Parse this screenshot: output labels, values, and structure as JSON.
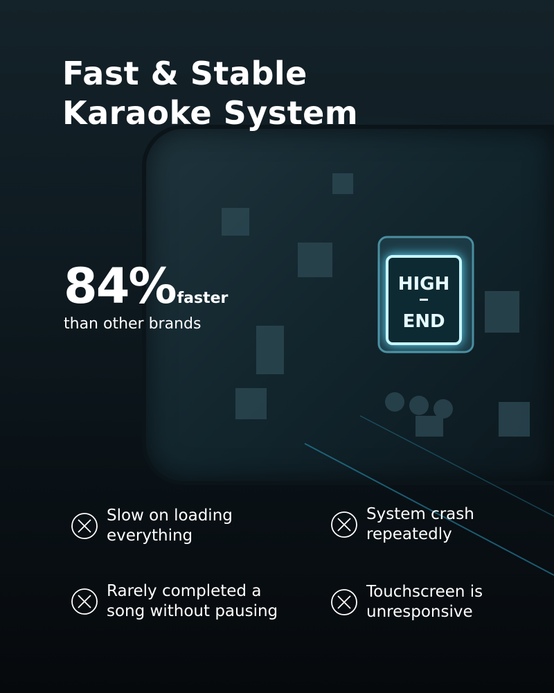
{
  "headline": {
    "line1": "Fast & Stable",
    "line2": "Karaoke System"
  },
  "stat": {
    "value": "84%",
    "suffix": "faster",
    "caption": "than other brands"
  },
  "chip_label": {
    "top": "HIGH",
    "bottom": "END"
  },
  "issues": [
    {
      "line1": "Slow on loading",
      "line2": "everything",
      "icon": "circle-x-icon"
    },
    {
      "line1": "System crash",
      "line2": "repeatedly",
      "icon": "circle-x-icon"
    },
    {
      "line1": "Rarely completed a",
      "line2": "song without pausing",
      "icon": "circle-x-icon"
    },
    {
      "line1": "Touchscreen is",
      "line2": "unresponsive",
      "icon": "circle-x-icon"
    }
  ],
  "colors": {
    "accent_glow": "#5fe0ff",
    "background": "#0e1a20",
    "text": "#ffffff"
  }
}
